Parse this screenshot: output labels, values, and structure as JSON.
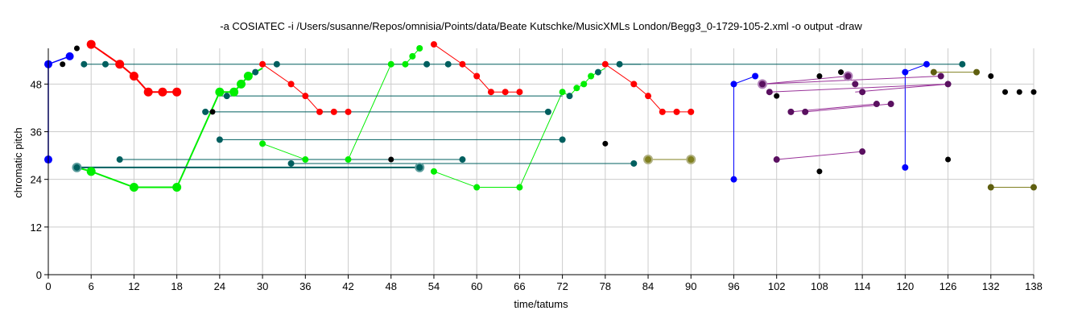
{
  "chart_data": {
    "type": "scatter",
    "title": "-a COSIATEC -i /Users/susanne/Repos/omnisia/Points/data/Beate Kutschke/MusicXMLs London/Begg3_0-1729-105-2.xml -o output -draw",
    "xlabel": "time/tatums",
    "ylabel": "chromatic pitch",
    "xlim": [
      0,
      138
    ],
    "ylim": [
      0,
      57
    ],
    "xticks": [
      0,
      6,
      12,
      18,
      24,
      30,
      36,
      42,
      48,
      54,
      60,
      66,
      72,
      78,
      84,
      90,
      96,
      102,
      108,
      114,
      120,
      126,
      132,
      138
    ],
    "yticks": [
      0,
      12,
      24,
      36,
      48
    ],
    "grid": true,
    "lines": [
      {
        "color": "#0000ff",
        "width": 1.5,
        "points": [
          [
            0,
            29
          ],
          [
            0,
            53
          ],
          [
            3,
            55
          ]
        ]
      },
      {
        "color": "#0000ff",
        "width": 1,
        "points": [
          [
            96,
            24
          ],
          [
            96,
            48
          ],
          [
            99,
            50
          ]
        ]
      },
      {
        "color": "#0000ff",
        "width": 1,
        "points": [
          [
            120,
            27
          ],
          [
            120,
            51
          ],
          [
            123,
            53
          ]
        ]
      },
      {
        "color": "#ff0000",
        "width": 2,
        "points": [
          [
            6,
            58
          ],
          [
            10,
            53
          ],
          [
            12,
            50
          ],
          [
            14,
            46
          ],
          [
            16,
            46
          ],
          [
            18,
            46
          ]
        ]
      },
      {
        "color": "#ff0000",
        "width": 1,
        "points": [
          [
            30,
            53
          ],
          [
            34,
            48
          ],
          [
            36,
            45
          ],
          [
            38,
            41
          ],
          [
            40,
            41
          ],
          [
            42,
            41
          ]
        ]
      },
      {
        "color": "#ff0000",
        "width": 1,
        "points": [
          [
            54,
            58
          ],
          [
            58,
            53
          ],
          [
            60,
            50
          ],
          [
            62,
            46
          ],
          [
            64,
            46
          ],
          [
            66,
            46
          ]
        ]
      },
      {
        "color": "#ff0000",
        "width": 1,
        "points": [
          [
            78,
            53
          ],
          [
            82,
            48
          ],
          [
            84,
            45
          ],
          [
            86,
            41
          ],
          [
            88,
            41
          ],
          [
            90,
            41
          ]
        ]
      },
      {
        "color": "#00ee00",
        "width": 2,
        "points": [
          [
            4,
            27
          ],
          [
            6,
            26
          ],
          [
            12,
            22
          ],
          [
            18,
            22
          ],
          [
            24,
            46
          ],
          [
            26,
            46
          ],
          [
            27,
            48
          ],
          [
            28,
            50
          ],
          [
            29,
            51
          ],
          [
            30,
            52
          ]
        ]
      },
      {
        "color": "#00ee00",
        "width": 1,
        "points": [
          [
            30,
            33
          ],
          [
            36,
            29
          ],
          [
            42,
            29
          ],
          [
            48,
            53
          ],
          [
            50,
            53
          ],
          [
            51,
            55
          ],
          [
            52,
            57
          ]
        ]
      },
      {
        "color": "#00ee00",
        "width": 1,
        "points": [
          [
            54,
            26
          ],
          [
            60,
            22
          ],
          [
            66,
            22
          ],
          [
            72,
            46
          ],
          [
            73,
            45
          ],
          [
            74,
            47
          ],
          [
            75,
            48
          ],
          [
            76,
            50
          ],
          [
            77,
            51
          ],
          [
            78,
            52
          ]
        ]
      },
      {
        "color": "#005f5f",
        "width": 1,
        "points": [
          [
            5,
            53
          ],
          [
            83,
            53
          ]
        ]
      },
      {
        "color": "#005f5f",
        "width": 1,
        "points": [
          [
            24,
            45
          ],
          [
            72,
            45
          ]
        ]
      },
      {
        "color": "#005f5f",
        "width": 1,
        "points": [
          [
            22,
            41
          ],
          [
            70,
            41
          ]
        ]
      },
      {
        "color": "#005f5f",
        "width": 1,
        "points": [
          [
            24,
            34
          ],
          [
            72,
            34
          ]
        ]
      },
      {
        "color": "#005f5f",
        "width": 1,
        "points": [
          [
            10,
            29
          ],
          [
            58,
            29
          ]
        ]
      },
      {
        "color": "#005f5f",
        "width": 1,
        "points": [
          [
            34,
            28
          ],
          [
            82,
            28
          ]
        ]
      },
      {
        "color": "#005f5f",
        "width": 2,
        "points": [
          [
            4,
            27
          ],
          [
            52,
            27
          ]
        ]
      },
      {
        "color": "#005f5f",
        "width": 1,
        "points": [
          [
            80,
            53
          ],
          [
            128,
            53
          ]
        ]
      },
      {
        "color": "#808020",
        "width": 1,
        "points": [
          [
            84,
            29
          ],
          [
            90,
            29
          ]
        ]
      },
      {
        "color": "#808020",
        "width": 1,
        "points": [
          [
            124,
            51
          ],
          [
            130,
            51
          ]
        ]
      },
      {
        "color": "#808020",
        "width": 1,
        "points": [
          [
            132,
            22
          ],
          [
            138,
            22
          ]
        ]
      },
      {
        "color": "#993399",
        "width": 1,
        "points": [
          [
            100,
            48
          ],
          [
            112,
            50
          ]
        ]
      },
      {
        "color": "#993399",
        "width": 1,
        "points": [
          [
            100,
            48
          ],
          [
            125,
            50
          ]
        ]
      },
      {
        "color": "#993399",
        "width": 1,
        "points": [
          [
            101,
            46
          ],
          [
            126,
            48
          ]
        ]
      },
      {
        "color": "#993399",
        "width": 1,
        "points": [
          [
            113,
            46
          ],
          [
            126,
            48
          ]
        ]
      },
      {
        "color": "#993399",
        "width": 1,
        "points": [
          [
            104,
            41
          ],
          [
            116,
            43
          ]
        ]
      },
      {
        "color": "#993399",
        "width": 1,
        "points": [
          [
            106,
            41
          ],
          [
            118,
            43
          ]
        ]
      },
      {
        "color": "#993399",
        "width": 1,
        "points": [
          [
            102,
            29
          ],
          [
            114,
            31
          ]
        ]
      }
    ],
    "points": [
      {
        "x": 0,
        "y": 29,
        "color": "#0000ff",
        "r": 5
      },
      {
        "x": 0,
        "y": 53,
        "color": "#0000ff",
        "r": 5
      },
      {
        "x": 3,
        "y": 55,
        "color": "#0000ff",
        "r": 5
      },
      {
        "x": 96,
        "y": 24,
        "color": "#0000ff",
        "r": 4
      },
      {
        "x": 96,
        "y": 48,
        "color": "#0000ff",
        "r": 4
      },
      {
        "x": 99,
        "y": 50,
        "color": "#0000ff",
        "r": 4
      },
      {
        "x": 120,
        "y": 27,
        "color": "#0000ff",
        "r": 4
      },
      {
        "x": 120,
        "y": 51,
        "color": "#0000ff",
        "r": 4
      },
      {
        "x": 123,
        "y": 53,
        "color": "#0000ff",
        "r": 4
      },
      {
        "x": 6,
        "y": 58,
        "color": "#ff0000",
        "r": 5.5
      },
      {
        "x": 10,
        "y": 53,
        "color": "#ff0000",
        "r": 5.5
      },
      {
        "x": 12,
        "y": 50,
        "color": "#ff0000",
        "r": 5.5
      },
      {
        "x": 14,
        "y": 46,
        "color": "#ff0000",
        "r": 5.5
      },
      {
        "x": 16,
        "y": 46,
        "color": "#ff0000",
        "r": 5.5
      },
      {
        "x": 18,
        "y": 46,
        "color": "#ff0000",
        "r": 5.5
      },
      {
        "x": 30,
        "y": 53,
        "color": "#ff0000",
        "r": 4
      },
      {
        "x": 34,
        "y": 48,
        "color": "#ff0000",
        "r": 4
      },
      {
        "x": 36,
        "y": 45,
        "color": "#ff0000",
        "r": 4
      },
      {
        "x": 38,
        "y": 41,
        "color": "#ff0000",
        "r": 4
      },
      {
        "x": 40,
        "y": 41,
        "color": "#ff0000",
        "r": 4
      },
      {
        "x": 42,
        "y": 41,
        "color": "#ff0000",
        "r": 4
      },
      {
        "x": 54,
        "y": 58,
        "color": "#ff0000",
        "r": 4
      },
      {
        "x": 58,
        "y": 53,
        "color": "#ff0000",
        "r": 4
      },
      {
        "x": 60,
        "y": 50,
        "color": "#ff0000",
        "r": 4
      },
      {
        "x": 62,
        "y": 46,
        "color": "#ff0000",
        "r": 4
      },
      {
        "x": 64,
        "y": 46,
        "color": "#ff0000",
        "r": 4
      },
      {
        "x": 66,
        "y": 46,
        "color": "#ff0000",
        "r": 4
      },
      {
        "x": 78,
        "y": 53,
        "color": "#ff0000",
        "r": 4
      },
      {
        "x": 82,
        "y": 48,
        "color": "#ff0000",
        "r": 4
      },
      {
        "x": 84,
        "y": 45,
        "color": "#ff0000",
        "r": 4
      },
      {
        "x": 86,
        "y": 41,
        "color": "#ff0000",
        "r": 4
      },
      {
        "x": 88,
        "y": 41,
        "color": "#ff0000",
        "r": 4
      },
      {
        "x": 90,
        "y": 41,
        "color": "#ff0000",
        "r": 4
      },
      {
        "x": 6,
        "y": 26,
        "color": "#00ee00",
        "r": 5.5
      },
      {
        "x": 12,
        "y": 22,
        "color": "#00ee00",
        "r": 5.5
      },
      {
        "x": 18,
        "y": 22,
        "color": "#00ee00",
        "r": 5.5
      },
      {
        "x": 24,
        "y": 46,
        "color": "#00ee00",
        "r": 5.5
      },
      {
        "x": 26,
        "y": 46,
        "color": "#00ee00",
        "r": 5.5
      },
      {
        "x": 27,
        "y": 48,
        "color": "#00ee00",
        "r": 5.5
      },
      {
        "x": 28,
        "y": 50,
        "color": "#00ee00",
        "r": 5.5
      },
      {
        "x": 30,
        "y": 33,
        "color": "#00ee00",
        "r": 4
      },
      {
        "x": 36,
        "y": 29,
        "color": "#00ee00",
        "r": 4
      },
      {
        "x": 42,
        "y": 29,
        "color": "#00ee00",
        "r": 4
      },
      {
        "x": 48,
        "y": 53,
        "color": "#00ee00",
        "r": 4
      },
      {
        "x": 50,
        "y": 53,
        "color": "#00ee00",
        "r": 4
      },
      {
        "x": 51,
        "y": 55,
        "color": "#00ee00",
        "r": 4
      },
      {
        "x": 52,
        "y": 57,
        "color": "#00ee00",
        "r": 4
      },
      {
        "x": 54,
        "y": 26,
        "color": "#00ee00",
        "r": 4
      },
      {
        "x": 60,
        "y": 22,
        "color": "#00ee00",
        "r": 4
      },
      {
        "x": 66,
        "y": 22,
        "color": "#00ee00",
        "r": 4
      },
      {
        "x": 72,
        "y": 46,
        "color": "#00ee00",
        "r": 4
      },
      {
        "x": 74,
        "y": 47,
        "color": "#00ee00",
        "r": 4
      },
      {
        "x": 75,
        "y": 48,
        "color": "#00ee00",
        "r": 4
      },
      {
        "x": 76,
        "y": 50,
        "color": "#00ee00",
        "r": 4
      },
      {
        "x": 5,
        "y": 53,
        "color": "#005f5f",
        "r": 4
      },
      {
        "x": 8,
        "y": 53,
        "color": "#005f5f",
        "r": 4
      },
      {
        "x": 10,
        "y": 29,
        "color": "#005f5f",
        "r": 4
      },
      {
        "x": 22,
        "y": 41,
        "color": "#005f5f",
        "r": 4
      },
      {
        "x": 24,
        "y": 34,
        "color": "#005f5f",
        "r": 4
      },
      {
        "x": 25,
        "y": 45,
        "color": "#005f5f",
        "r": 4
      },
      {
        "x": 29,
        "y": 51,
        "color": "#005f5f",
        "r": 4
      },
      {
        "x": 32,
        "y": 53,
        "color": "#005f5f",
        "r": 4
      },
      {
        "x": 34,
        "y": 28,
        "color": "#005f5f",
        "r": 4
      },
      {
        "x": 53,
        "y": 53,
        "color": "#005f5f",
        "r": 4
      },
      {
        "x": 56,
        "y": 53,
        "color": "#005f5f",
        "r": 4
      },
      {
        "x": 58,
        "y": 29,
        "color": "#005f5f",
        "r": 4
      },
      {
        "x": 70,
        "y": 41,
        "color": "#005f5f",
        "r": 4
      },
      {
        "x": 72,
        "y": 34,
        "color": "#005f5f",
        "r": 4
      },
      {
        "x": 73,
        "y": 45,
        "color": "#005f5f",
        "r": 4
      },
      {
        "x": 77,
        "y": 51,
        "color": "#005f5f",
        "r": 4
      },
      {
        "x": 80,
        "y": 53,
        "color": "#005f5f",
        "r": 4
      },
      {
        "x": 82,
        "y": 28,
        "color": "#005f5f",
        "r": 4
      },
      {
        "x": 128,
        "y": 53,
        "color": "#005f5f",
        "r": 4
      },
      {
        "x": 4,
        "y": 27,
        "color": "#005f5f",
        "r": 5,
        "stroke": "#5f9f9f"
      },
      {
        "x": 52,
        "y": 27,
        "color": "#005f5f",
        "r": 5,
        "stroke": "#5f9f9f"
      },
      {
        "x": 84,
        "y": 29,
        "color": "#808020",
        "r": 5,
        "stroke": "#b0b080"
      },
      {
        "x": 90,
        "y": 29,
        "color": "#808020",
        "r": 5,
        "stroke": "#b0b080"
      },
      {
        "x": 124,
        "y": 51,
        "color": "#5f5f10",
        "r": 4
      },
      {
        "x": 130,
        "y": 51,
        "color": "#5f5f10",
        "r": 4
      },
      {
        "x": 132,
        "y": 22,
        "color": "#5f5f10",
        "r": 4
      },
      {
        "x": 138,
        "y": 22,
        "color": "#5f5f10",
        "r": 4
      },
      {
        "x": 100,
        "y": 48,
        "color": "#5a1060",
        "r": 5,
        "stroke": "#b080b8"
      },
      {
        "x": 112,
        "y": 50,
        "color": "#5a1060",
        "r": 5,
        "stroke": "#b080b8"
      },
      {
        "x": 101,
        "y": 46,
        "color": "#5a1060",
        "r": 4
      },
      {
        "x": 104,
        "y": 41,
        "color": "#5a1060",
        "r": 4
      },
      {
        "x": 106,
        "y": 41,
        "color": "#5a1060",
        "r": 4
      },
      {
        "x": 102,
        "y": 29,
        "color": "#5a1060",
        "r": 4
      },
      {
        "x": 113,
        "y": 48,
        "color": "#5a1060",
        "r": 4
      },
      {
        "x": 114,
        "y": 46,
        "color": "#5a1060",
        "r": 4
      },
      {
        "x": 114,
        "y": 31,
        "color": "#5a1060",
        "r": 4
      },
      {
        "x": 116,
        "y": 43,
        "color": "#5a1060",
        "r": 4
      },
      {
        "x": 118,
        "y": 43,
        "color": "#5a1060",
        "r": 4
      },
      {
        "x": 125,
        "y": 50,
        "color": "#5a1060",
        "r": 4
      },
      {
        "x": 126,
        "y": 48,
        "color": "#5a1060",
        "r": 4
      },
      {
        "x": 2,
        "y": 53,
        "color": "#000000",
        "r": 3.5
      },
      {
        "x": 4,
        "y": 57,
        "color": "#000000",
        "r": 3.5
      },
      {
        "x": 23,
        "y": 41,
        "color": "#000000",
        "r": 3.5
      },
      {
        "x": 48,
        "y": 29,
        "color": "#000000",
        "r": 3.5
      },
      {
        "x": 78,
        "y": 33,
        "color": "#000000",
        "r": 3.5
      },
      {
        "x": 102,
        "y": 45,
        "color": "#000000",
        "r": 3.5
      },
      {
        "x": 108,
        "y": 50,
        "color": "#000000",
        "r": 3.5
      },
      {
        "x": 108,
        "y": 26,
        "color": "#000000",
        "r": 3.5
      },
      {
        "x": 111,
        "y": 51,
        "color": "#000000",
        "r": 3.5
      },
      {
        "x": 126,
        "y": 29,
        "color": "#000000",
        "r": 3.5
      },
      {
        "x": 132,
        "y": 50,
        "color": "#000000",
        "r": 3.5
      },
      {
        "x": 134,
        "y": 46,
        "color": "#000000",
        "r": 3.5
      },
      {
        "x": 136,
        "y": 46,
        "color": "#000000",
        "r": 3.5
      },
      {
        "x": 138,
        "y": 46,
        "color": "#000000",
        "r": 3.5
      }
    ]
  }
}
